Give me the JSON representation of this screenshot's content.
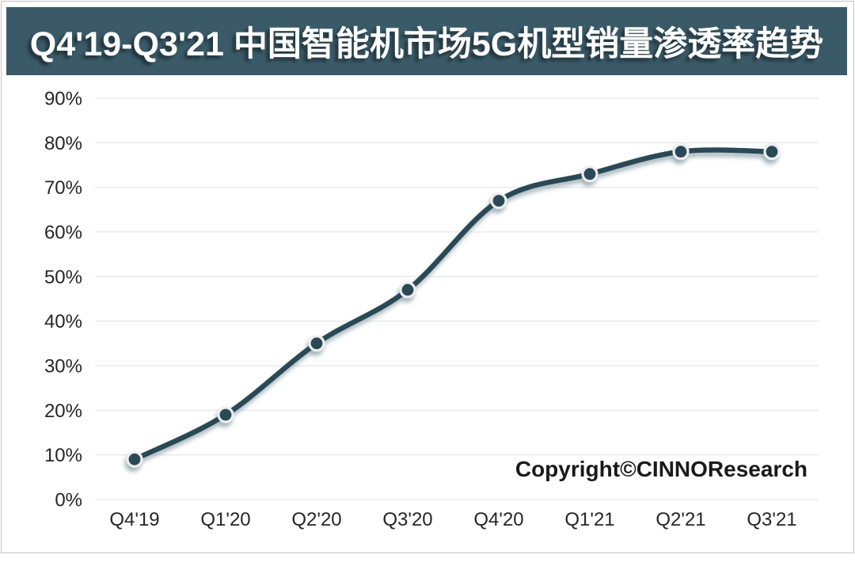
{
  "title": "Q4'19-Q3'21 中国智能机市场5G机型销量渗透率趋势",
  "copyright": "Copyright©CINNOResearch",
  "chart_data": {
    "type": "line",
    "title": "Q4'19-Q3'21 中国智能机市场5G机型销量渗透率趋势",
    "categories": [
      "Q4'19",
      "Q1'20",
      "Q2'20",
      "Q3'20",
      "Q4'20",
      "Q1'21",
      "Q2'21",
      "Q3'21"
    ],
    "values": [
      9,
      19,
      35,
      47,
      67,
      73,
      78,
      78
    ],
    "unit": "%",
    "xlabel": "",
    "ylabel": "",
    "ylim": [
      0,
      90
    ],
    "ytick_step": 10,
    "ytick_labels": [
      "0%",
      "10%",
      "20%",
      "30%",
      "40%",
      "50%",
      "60%",
      "70%",
      "80%",
      "90%"
    ],
    "grid": "horizontal-only",
    "legend": "none",
    "marker": "circle-with-light-ring",
    "line_style": "smooth",
    "annotations": [
      "Copyright©CINNOResearch"
    ]
  },
  "colors": {
    "title_bar_bg": "#3A5A68",
    "title_text": "#FFFFFF",
    "line": "#2B4A57",
    "marker_fill": "#2B4A57",
    "marker_ring": "#EDEDED",
    "grid": "#E0E0E0",
    "axis_text": "#262626",
    "page_border": "#C2C2C2",
    "page_bg": "#FFFFFF"
  }
}
